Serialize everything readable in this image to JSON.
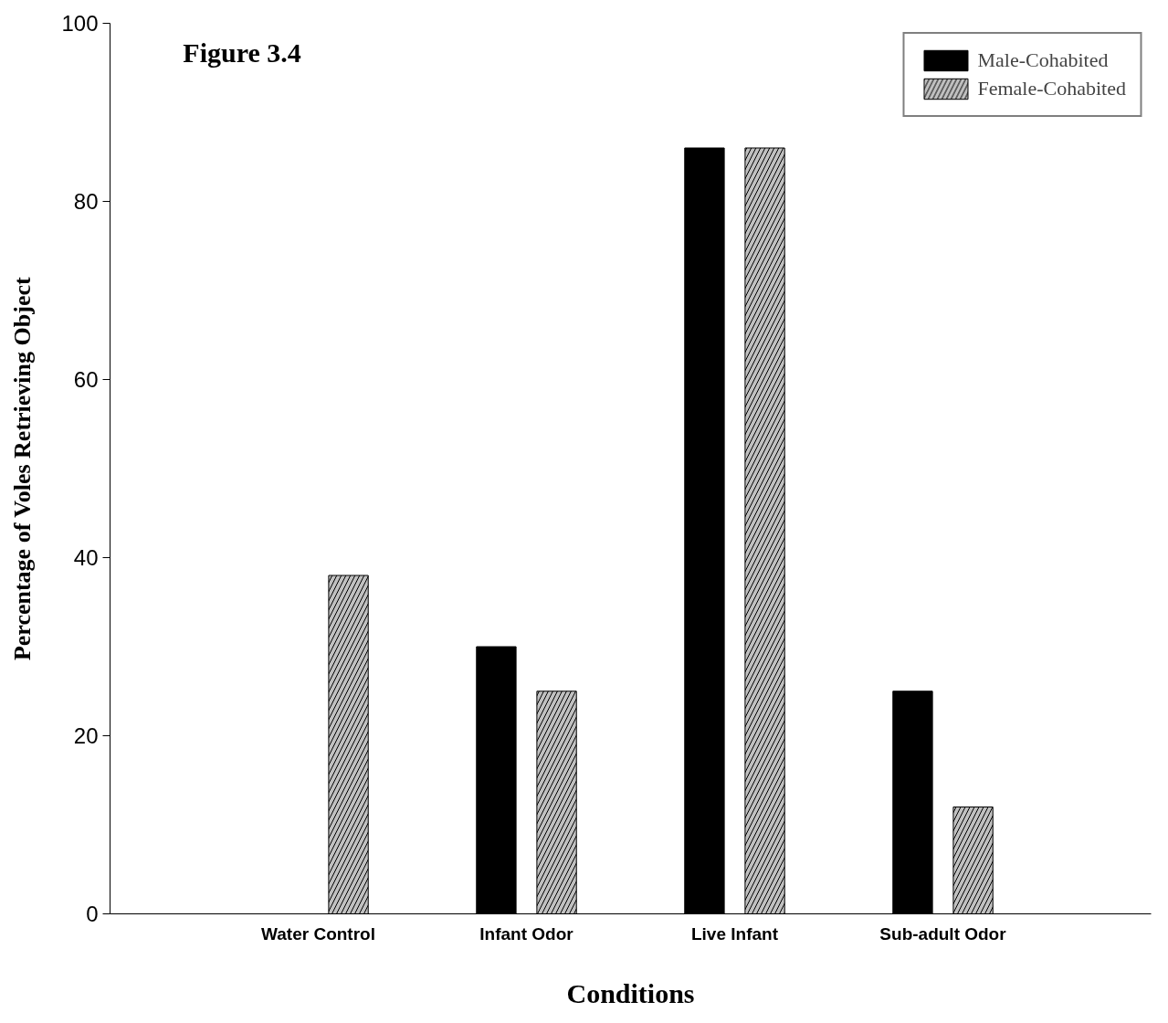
{
  "chart_data": {
    "type": "bar",
    "title": "Figure 3.4",
    "xlabel": "Conditions",
    "ylabel": "Percentage of Voles Retrieving Object",
    "categories": [
      "Water Control",
      "Infant Odor",
      "Live Infant",
      "Sub-adult Odor"
    ],
    "series": [
      {
        "name": "Male-Cohabited",
        "color": "#000000",
        "values": [
          0,
          30,
          86,
          25
        ]
      },
      {
        "name": "Female-Cohabited",
        "color": "#c0c0c0",
        "values": [
          38,
          25,
          86,
          12
        ]
      }
    ],
    "ylim": [
      0,
      100
    ],
    "yticks": [
      0,
      20,
      40,
      60,
      80,
      100
    ],
    "grid": false,
    "legend": "top right"
  }
}
